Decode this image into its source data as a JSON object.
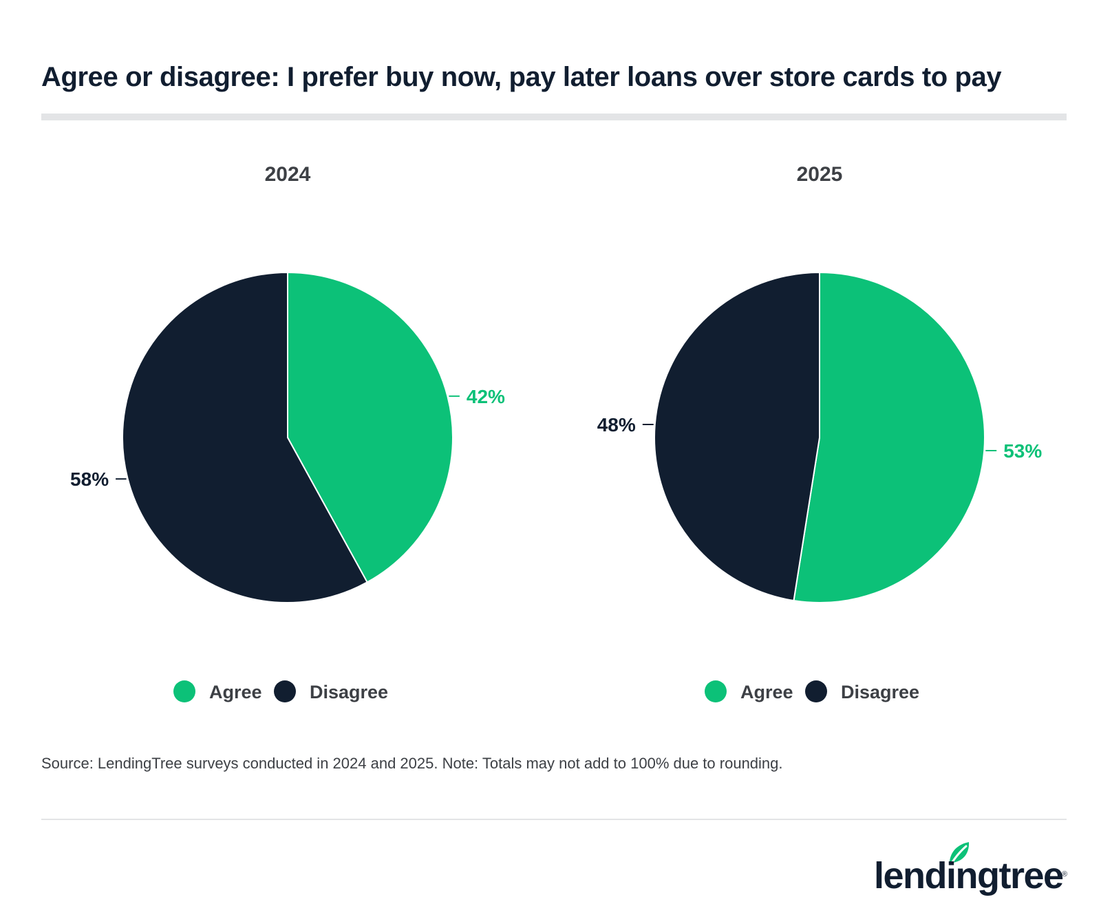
{
  "title": "Agree or disagree: I prefer buy now, pay later loans over store cards to pay",
  "colors": {
    "agree": "#0cc178",
    "disagree": "#111e30",
    "brand_green": "#0cc178"
  },
  "chart_data": [
    {
      "type": "pie",
      "title": "2024",
      "slices": [
        {
          "name": "Agree",
          "value": 42,
          "label": "42%"
        },
        {
          "name": "Disagree",
          "value": 58,
          "label": "58%"
        }
      ],
      "legend": [
        "Agree",
        "Disagree"
      ],
      "legend_position": "bottom"
    },
    {
      "type": "pie",
      "title": "2025",
      "slices": [
        {
          "name": "Agree",
          "value": 52.5,
          "label": "53%"
        },
        {
          "name": "Disagree",
          "value": 47.5,
          "label": "48%"
        }
      ],
      "legend": [
        "Agree",
        "Disagree"
      ],
      "legend_position": "bottom"
    }
  ],
  "source": "Source: LendingTree surveys conducted in 2024 and 2025. Note: Totals may not add to 100% due to rounding.",
  "logo": {
    "text": "lendingtree",
    "registered_mark": "®",
    "icon": "leaf-icon"
  }
}
